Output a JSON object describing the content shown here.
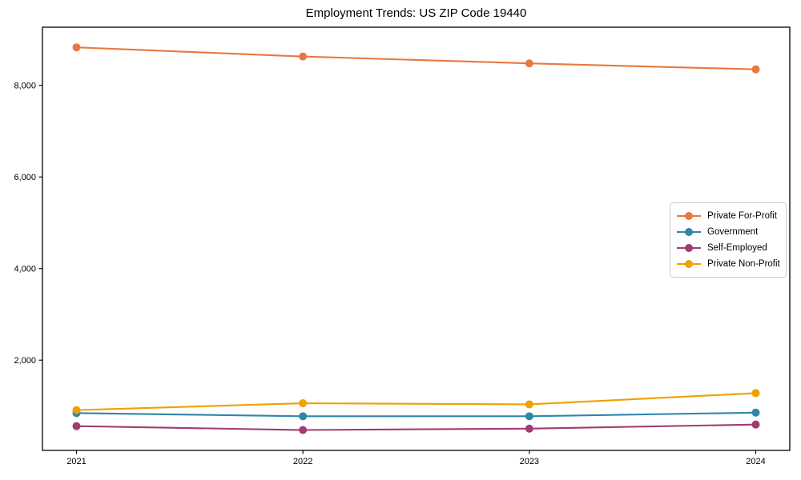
{
  "figure": {
    "title": "Employment Trends: US ZIP Code 19440",
    "background_color": "#ffffff",
    "axis_color": "#000000",
    "legend_border_color": "#cccccc"
  },
  "chart_data": {
    "type": "line",
    "title": "Employment Trends: US ZIP Code 19440",
    "categories": [
      "2021",
      "2022",
      "2023",
      "2024"
    ],
    "series": [
      {
        "name": "Private For-Profit",
        "color": "#e8793e",
        "values": [
          8830,
          8630,
          8480,
          8350
        ]
      },
      {
        "name": "Government",
        "color": "#2e86ab",
        "values": [
          845,
          775,
          775,
          855
        ]
      },
      {
        "name": "Self-Employed",
        "color": "#a23b72",
        "values": [
          560,
          475,
          505,
          595
        ]
      },
      {
        "name": "Private Non-Profit",
        "color": "#f0a000",
        "values": [
          910,
          1060,
          1035,
          1280
        ]
      }
    ],
    "xlabel": "",
    "ylabel": "",
    "yticks": [
      2000,
      4000,
      6000,
      8000
    ],
    "ytick_labels": [
      "2,000",
      "4,000",
      "6,000",
      "8,000"
    ],
    "ylim": [
      30,
      9270
    ],
    "grid": false,
    "legend_position": "center right",
    "marker": "circle"
  }
}
